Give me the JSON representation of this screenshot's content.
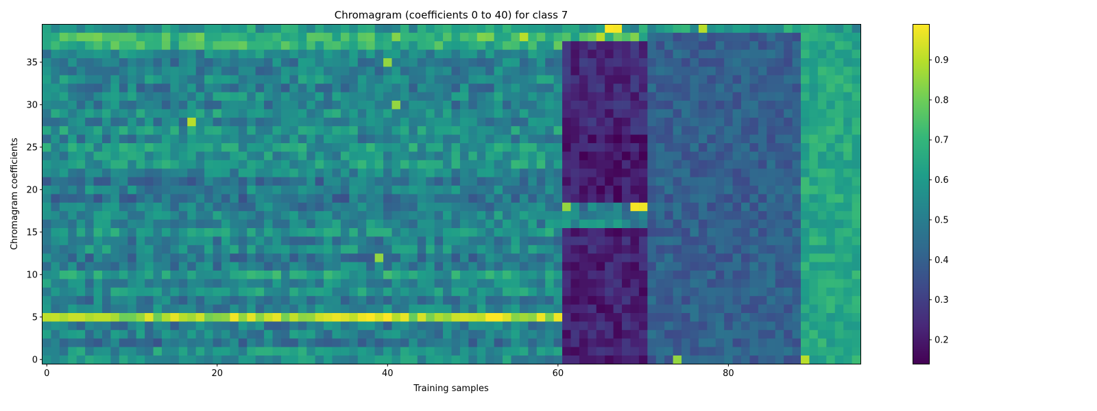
{
  "chart_data": {
    "type": "heatmap",
    "title": "Chromagram (coefficients 0 to 40) for class 7",
    "xlabel": "Training samples",
    "ylabel": "Chromagram coefficients",
    "n_samples": 96,
    "n_coefficients": 40,
    "xlim": [
      -0.5,
      95.5
    ],
    "ylim": [
      -0.5,
      39.5
    ],
    "x_ticks": [
      0,
      20,
      40,
      60,
      80
    ],
    "y_ticks": [
      0,
      5,
      10,
      15,
      20,
      25,
      30,
      35
    ],
    "colormap": "viridis",
    "colormap_stops": [
      "#440154",
      "#482878",
      "#3e4989",
      "#31688e",
      "#26828e",
      "#1f9e89",
      "#35b779",
      "#6ece58",
      "#b5de2b",
      "#fde725"
    ],
    "colorbar": {
      "range": [
        0.14,
        0.99
      ],
      "ticks": [
        0.2,
        0.3,
        0.4,
        0.5,
        0.6,
        0.7,
        0.8,
        0.9
      ]
    },
    "value_model": {
      "base_level": 0.52,
      "background_band_levels": [
        0.55,
        0.57,
        0.46,
        0.52,
        0.5,
        0.9,
        0.52,
        0.49,
        0.58,
        0.54,
        0.62,
        0.5,
        0.47,
        0.55,
        0.51,
        0.58,
        0.53,
        0.54,
        0.5,
        0.46,
        0.52,
        0.47,
        0.54,
        0.6,
        0.56,
        0.6,
        0.52,
        0.58,
        0.52,
        0.58,
        0.5,
        0.54,
        0.5,
        0.55,
        0.51,
        0.5,
        0.54,
        0.68,
        0.72,
        0.6
      ],
      "segments": [
        {
          "label": "low-energy block",
          "samples": [
            61,
            70
          ],
          "coefficients": [
            0,
            15
          ],
          "level": 0.22
        },
        {
          "label": "low-energy block",
          "samples": [
            61,
            70
          ],
          "coefficients": [
            19,
            26
          ],
          "level": 0.2
        },
        {
          "label": "low-energy block",
          "samples": [
            61,
            70
          ],
          "coefficients": [
            27,
            37
          ],
          "level": 0.24
        },
        {
          "label": "mid-energy block",
          "samples": [
            71,
            88
          ],
          "coefficients": [
            0,
            38
          ],
          "level": 0.4
        },
        {
          "label": "high-energy block",
          "samples": [
            89,
            95
          ],
          "coefficients": [
            0,
            38
          ],
          "level": 0.65
        }
      ],
      "highlights": [
        {
          "sample": 66,
          "coefficient": 39,
          "level": 0.99
        },
        {
          "sample": 67,
          "coefficient": 39,
          "level": 0.98
        },
        {
          "sample": 65,
          "coefficient": 38,
          "level": 0.9
        },
        {
          "sample": 69,
          "coefficient": 18,
          "level": 0.98
        },
        {
          "sample": 70,
          "coefficient": 18,
          "level": 0.97
        },
        {
          "sample": 61,
          "coefficient": 18,
          "level": 0.85
        },
        {
          "sample": 77,
          "coefficient": 39,
          "level": 0.9
        },
        {
          "sample": 39,
          "coefficient": 12,
          "level": 0.85
        },
        {
          "sample": 40,
          "coefficient": 35,
          "level": 0.85
        },
        {
          "sample": 17,
          "coefficient": 28,
          "level": 0.9
        },
        {
          "sample": 41,
          "coefficient": 30,
          "level": 0.85
        },
        {
          "sample": 74,
          "coefficient": 0,
          "level": 0.85
        },
        {
          "sample": 89,
          "coefficient": 0,
          "level": 0.9
        },
        {
          "sample": 56,
          "coefficient": 38,
          "level": 0.9
        },
        {
          "sample": 60,
          "coefficient": 5,
          "level": 0.97
        },
        {
          "sample": 58,
          "coefficient": 5,
          "level": 0.97
        }
      ]
    }
  }
}
